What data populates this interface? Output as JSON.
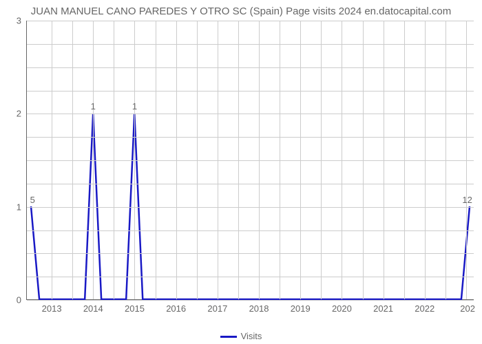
{
  "chart": {
    "type": "line",
    "title": "JUAN MANUEL CANO PAREDES Y OTRO SC (Spain) Page visits 2024 en.datocapital.com",
    "title_fontsize": 15,
    "title_color": "#666666",
    "background_color": "#ffffff",
    "grid_color": "#cccccc",
    "axis_color": "#666666",
    "tick_color": "#666666",
    "tick_fontsize": 13,
    "xlim": [
      2012.4,
      2023.2
    ],
    "ylim": [
      0,
      3
    ],
    "ytick_step": 1,
    "yticks": [
      0,
      1,
      2,
      3
    ],
    "xticks": [
      2013,
      2014,
      2015,
      2016,
      2017,
      2018,
      2019,
      2020,
      2021,
      2022
    ],
    "last_xtick_label": "202",
    "series": {
      "name": "Visits",
      "color": "#1919c5",
      "line_width": 2.5,
      "points": [
        {
          "x": 2012.5,
          "y": 1,
          "label": "5"
        },
        {
          "x": 2012.7,
          "y": 0
        },
        {
          "x": 2013.8,
          "y": 0
        },
        {
          "x": 2014.0,
          "y": 2,
          "label": "1"
        },
        {
          "x": 2014.2,
          "y": 0
        },
        {
          "x": 2014.8,
          "y": 0
        },
        {
          "x": 2015.0,
          "y": 2,
          "label": "1"
        },
        {
          "x": 2015.2,
          "y": 0
        },
        {
          "x": 2022.9,
          "y": 0
        },
        {
          "x": 2023.1,
          "y": 1,
          "label": "12"
        }
      ]
    },
    "minor_grid_per_unit_x": 2,
    "minor_grid_per_unit_y": 4,
    "legend_label": "Visits"
  }
}
